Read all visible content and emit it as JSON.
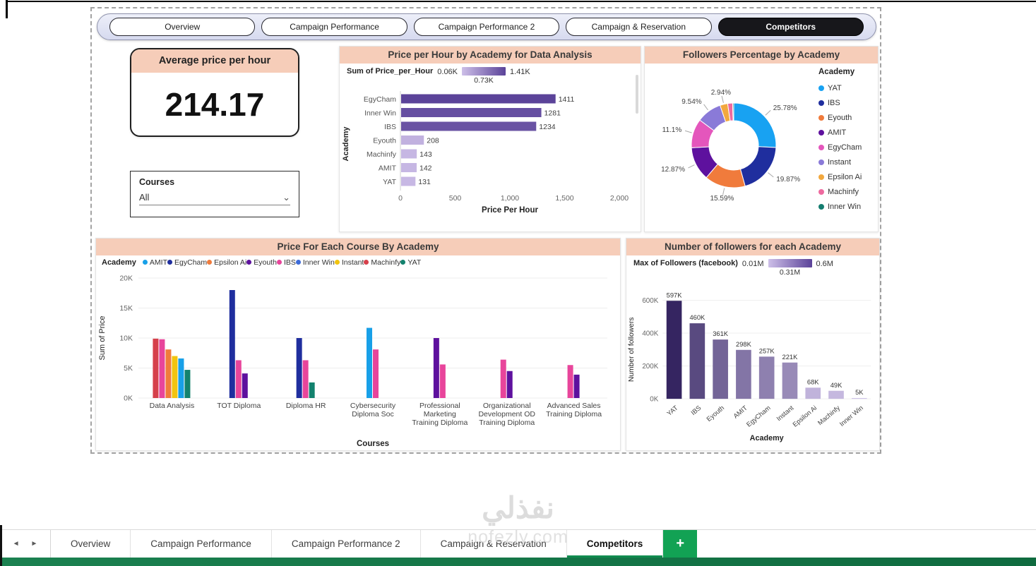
{
  "top_nav": {
    "pills": [
      {
        "label": "Overview",
        "active": false
      },
      {
        "label": "Campaign Performance",
        "active": false
      },
      {
        "label": "Campaign Performance 2",
        "active": false
      },
      {
        "label": "Campaign & Reservation",
        "active": false
      },
      {
        "label": "Competitors",
        "active": true
      }
    ]
  },
  "avg_card": {
    "title": "Average price per hour",
    "value": "214.17"
  },
  "courses_filter": {
    "label": "Courses",
    "value": "All"
  },
  "chart_data": [
    {
      "type": "bar",
      "orientation": "horizontal",
      "title": "Price per Hour by Academy for Data Analysis",
      "gradient_legend": {
        "label": "Sum of Price_per_Hour",
        "min": "0.06K",
        "max": "1.41K",
        "mid": "0.73K"
      },
      "categories": [
        "EgyCham",
        "Inner Win",
        "IBS",
        "Eyouth",
        "Machinfy",
        "AMIT",
        "YAT"
      ],
      "values": [
        1411,
        1281,
        1234,
        208,
        143,
        142,
        131
      ],
      "value_labels": [
        "1411",
        "1281",
        "1234",
        "208",
        "143",
        "142",
        "131"
      ],
      "xlabel": "Price Per Hour",
      "ylabel": "Academy",
      "xlim": [
        0,
        2000
      ],
      "xticks": [
        0,
        500,
        1000,
        1500,
        2000
      ],
      "xtick_labels": [
        "0",
        "500",
        "1,000",
        "1,500",
        "2,000"
      ],
      "color_low": "#CDBFE8",
      "color_high": "#5B4399"
    },
    {
      "type": "pie",
      "donut": true,
      "title": "Followers Percentage by Academy",
      "legend_title": "Academy",
      "legend_position": "right",
      "slices": [
        {
          "label": "YAT",
          "value": 25.78,
          "display": "25.78%",
          "color": "#18A2F2"
        },
        {
          "label": "IBS",
          "value": 19.87,
          "display": "19.87%",
          "color": "#1F2E9E"
        },
        {
          "label": "Eyouth",
          "value": 15.59,
          "display": "15.59%",
          "color": "#F07B3C"
        },
        {
          "label": "AMIT",
          "value": 12.87,
          "display": "12.87%",
          "color": "#5E119E"
        },
        {
          "label": "EgyCham",
          "value": 11.1,
          "display": "11.1%",
          "color": "#E456BC"
        },
        {
          "label": "Instant",
          "value": 9.54,
          "display": "9.54%",
          "color": "#8A7AD8"
        },
        {
          "label": "Epsilon Ai",
          "value": 2.94,
          "display": "2.94%",
          "color": "#F2A83E"
        },
        {
          "label": "Machinfy",
          "value": 1.9,
          "display": null,
          "color": "#EE6A9F"
        },
        {
          "label": "Inner Win",
          "value": 0.41,
          "display": null,
          "color": "#147D6F"
        }
      ]
    },
    {
      "type": "bar",
      "clustered": true,
      "title": "Price For Each Course By Academy",
      "legend_title": "Academy",
      "legend": [
        {
          "label": "AMIT",
          "color": "#18A0E8"
        },
        {
          "label": "EgyCham",
          "color": "#1F2E9E"
        },
        {
          "label": "Epsilon Ai",
          "color": "#F07B3C"
        },
        {
          "label": "Eyouth",
          "color": "#5E119E"
        },
        {
          "label": "IBS",
          "color": "#E8459B"
        },
        {
          "label": "Inner Win",
          "color": "#3D6BD8"
        },
        {
          "label": "Instant",
          "color": "#F2C40F"
        },
        {
          "label": "Machinfy",
          "color": "#D6404B"
        },
        {
          "label": "YAT",
          "color": "#13826E"
        }
      ],
      "ylabel": "Sum of Price",
      "xlabel": "Courses",
      "ylim": [
        0,
        20000
      ],
      "ytick_labels": [
        "0K",
        "5K",
        "10K",
        "15K",
        "20K"
      ],
      "groups": [
        {
          "category_lines": [
            "Data Analysis"
          ],
          "bars": [
            {
              "academy": "Machinfy",
              "value": 9900
            },
            {
              "academy": "IBS",
              "value": 9800
            },
            {
              "academy": "Epsilon Ai",
              "value": 8100
            },
            {
              "academy": "Instant",
              "value": 7000
            },
            {
              "academy": "AMIT",
              "value": 6600
            },
            {
              "academy": "YAT",
              "value": 4700
            }
          ]
        },
        {
          "category_lines": [
            "TOT Diploma"
          ],
          "bars": [
            {
              "academy": "EgyCham",
              "value": 18000
            },
            {
              "academy": "IBS",
              "value": 6300
            },
            {
              "academy": "Eyouth",
              "value": 4100
            }
          ]
        },
        {
          "category_lines": [
            "Diploma HR"
          ],
          "bars": [
            {
              "academy": "EgyCham",
              "value": 10000
            },
            {
              "academy": "IBS",
              "value": 6300
            },
            {
              "academy": "YAT",
              "value": 2600
            }
          ]
        },
        {
          "category_lines": [
            "Cybersecurity",
            "Diploma Soc"
          ],
          "bars": [
            {
              "academy": "AMIT",
              "value": 11700
            },
            {
              "academy": "IBS",
              "value": 8100
            }
          ]
        },
        {
          "category_lines": [
            "Professional",
            "Marketing",
            "Training Diploma"
          ],
          "bars": [
            {
              "academy": "Eyouth",
              "value": 10000
            },
            {
              "academy": "IBS",
              "value": 5600
            }
          ]
        },
        {
          "category_lines": [
            "Organizational",
            "Development OD",
            "Training Diploma"
          ],
          "bars": [
            {
              "academy": "IBS",
              "value": 6400
            },
            {
              "academy": "Eyouth",
              "value": 4500
            }
          ]
        },
        {
          "category_lines": [
            "Advanced Sales",
            "Training Diploma"
          ],
          "bars": [
            {
              "academy": "IBS",
              "value": 5500
            },
            {
              "academy": "Eyouth",
              "value": 3900
            }
          ]
        }
      ]
    },
    {
      "type": "bar",
      "orientation": "vertical",
      "title": "Number of followers for each Academy",
      "gradient_legend": {
        "label": "Max of Followers (facebook)",
        "min": "0.01M",
        "max": "0.6M",
        "mid": "0.31M"
      },
      "categories": [
        "YAT",
        "IBS",
        "Eyouth",
        "AMIT",
        "EgyCham",
        "Instant",
        "Epsilon Ai",
        "Machinfy",
        "Inner Win"
      ],
      "values": [
        597000,
        460000,
        361000,
        298000,
        257000,
        221000,
        68000,
        49000,
        5000
      ],
      "value_labels": [
        "597K",
        "460K",
        "361K",
        "298K",
        "257K",
        "221K",
        "68K",
        "49K",
        "5K"
      ],
      "ylabel": "Number of followers",
      "xlabel": "Academy",
      "ylim": [
        0,
        600000
      ],
      "yticks": [
        0,
        200000,
        400000,
        600000
      ],
      "ytick_labels": [
        "0K",
        "200K",
        "400K",
        "600K"
      ],
      "color_low": "#CFC3E8",
      "color_high": "#342460"
    }
  ],
  "bottom_bar": {
    "tabs": [
      {
        "label": "Overview",
        "active": false
      },
      {
        "label": "Campaign Performance",
        "active": false
      },
      {
        "label": "Campaign Performance 2",
        "active": false
      },
      {
        "label": "Campaign & Reservation",
        "active": false
      },
      {
        "label": "Competitors",
        "active": true
      }
    ],
    "add_label": "+",
    "prev_icon": "◄",
    "next_icon": "►"
  },
  "watermark": {
    "line1": "نفذلي",
    "line2": "nofezly.com"
  },
  "colors": {
    "peach_header": "#F6CDB9",
    "active_pill_bg": "#17171B",
    "tab_accent_green": "#118C4F",
    "add_button_green": "#12A254",
    "bottom_strip_green": "#147449",
    "gradient_low": "#CDBFE8",
    "gradient_high": "#5B4399"
  }
}
